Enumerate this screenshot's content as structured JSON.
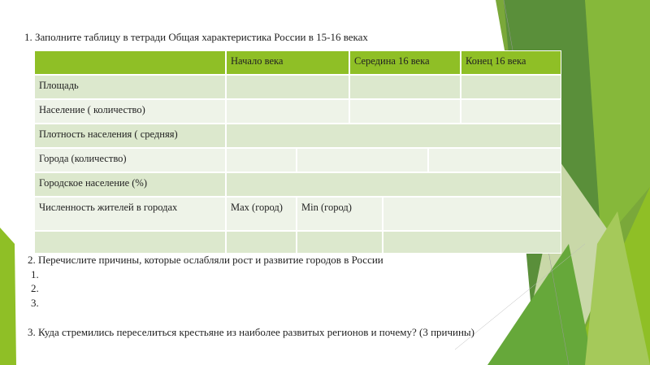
{
  "task1": "1.  Заполните таблицу в тетради Общая характеристика России в 15-16 веках",
  "table": {
    "headers": [
      "",
      "Начало века",
      "Середина 16 века",
      "Конец 16 века"
    ],
    "rows": [
      "Площадь",
      "Население ( количество)",
      "Плотность населения ( средняя)",
      "Города (количество)",
      "Городское население (%)",
      "Численность жителей в городах"
    ],
    "max_label": "Max (город)",
    "min_label": "Min (город)"
  },
  "task2": "2.    Перечислите причины, которые ослабляли рост и развитие городов в России",
  "task2_items": [
    "1.",
    "2.",
    "3."
  ],
  "task3": "3. Куда стремились переселиться крестьяне из наиболее развитых регионов и почему? (3 причины)",
  "colors": {
    "header": "#8fbf26",
    "row_dark": "#dce8cd",
    "row_light": "#eef3e8",
    "accent_dark": "#4f8a2a"
  }
}
